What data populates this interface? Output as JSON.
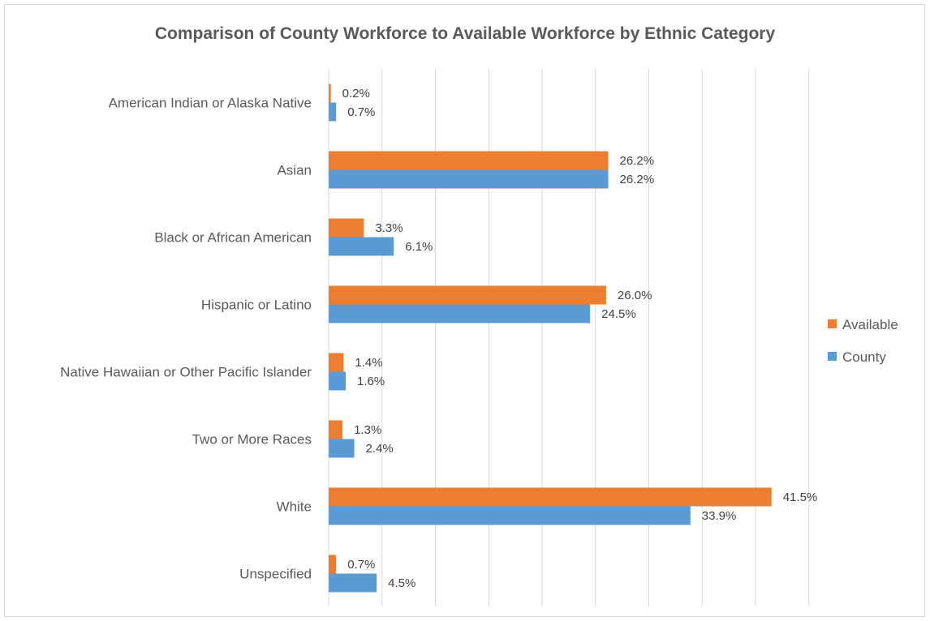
{
  "chart_data": {
    "type": "bar",
    "orientation": "horizontal",
    "title": "Comparison of County Workforce to Available Workforce by Ethnic Category",
    "categories": [
      "American Indian or Alaska Native",
      "Asian",
      "Black or African American",
      "Hispanic or Latino",
      "Native Hawaiian or Other Pacific Islander",
      "Two or More Races",
      "White",
      "Unspecified"
    ],
    "series": [
      {
        "name": "Available",
        "color": "#ED7D31",
        "values": [
          0.2,
          26.2,
          3.3,
          26.0,
          1.4,
          1.3,
          41.5,
          0.7
        ],
        "labels": [
          "0.2%",
          "26.2%",
          "3.3%",
          "26.0%",
          "1.4%",
          "1.3%",
          "41.5%",
          "0.7%"
        ]
      },
      {
        "name": "County",
        "color": "#5B9BD5",
        "values": [
          0.7,
          26.2,
          6.1,
          24.5,
          1.6,
          2.4,
          33.9,
          4.5
        ],
        "labels": [
          "0.7%",
          "26.2%",
          "6.1%",
          "24.5%",
          "1.6%",
          "2.4%",
          "33.9%",
          "4.5%"
        ]
      }
    ],
    "xlim": [
      0,
      45
    ],
    "grid": true,
    "legend_position": "right"
  },
  "colors": {
    "grid": "#d9d9d9",
    "text": "#595959"
  }
}
